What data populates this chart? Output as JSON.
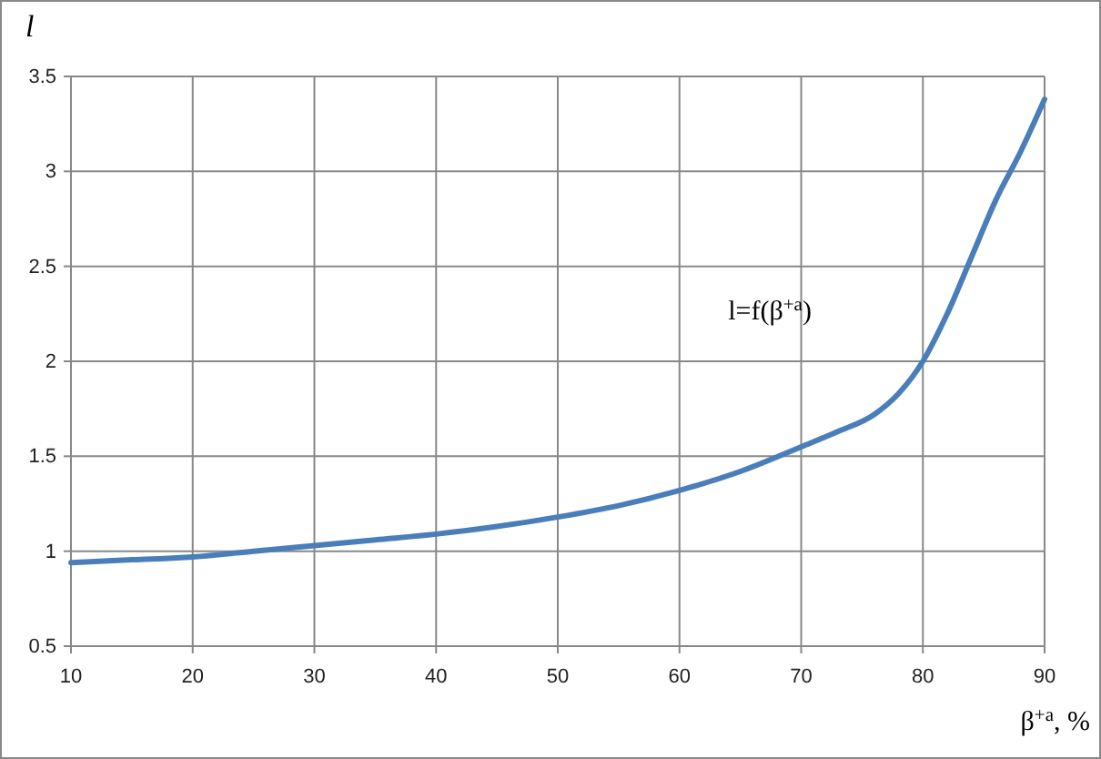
{
  "chart_data": {
    "type": "line",
    "xlabel": "β$^{+a}$, %",
    "ylabel": "l",
    "x": [
      10,
      15,
      20,
      25,
      30,
      35,
      40,
      45,
      50,
      55,
      60,
      65,
      70,
      73,
      76,
      78,
      80,
      82,
      84,
      86,
      88,
      90
    ],
    "series": [
      {
        "name": "l=f(β$^{+a}$)",
        "color": "#4a7ebb",
        "values": [
          0.94,
          0.955,
          0.97,
          1.0,
          1.03,
          1.06,
          1.09,
          1.13,
          1.18,
          1.24,
          1.32,
          1.42,
          1.55,
          1.63,
          1.72,
          1.83,
          2.0,
          2.25,
          2.55,
          2.85,
          3.1,
          3.38
        ]
      }
    ],
    "xlim": [
      10,
      90
    ],
    "xticks": [
      10,
      20,
      30,
      40,
      50,
      60,
      70,
      80,
      90
    ],
    "ylim": [
      0.5,
      3.5
    ],
    "yticks": [
      0.5,
      1,
      1.5,
      2,
      2.5,
      3,
      3.5
    ],
    "grid": true,
    "legend": false,
    "marker": "none",
    "line_style": "solid"
  }
}
